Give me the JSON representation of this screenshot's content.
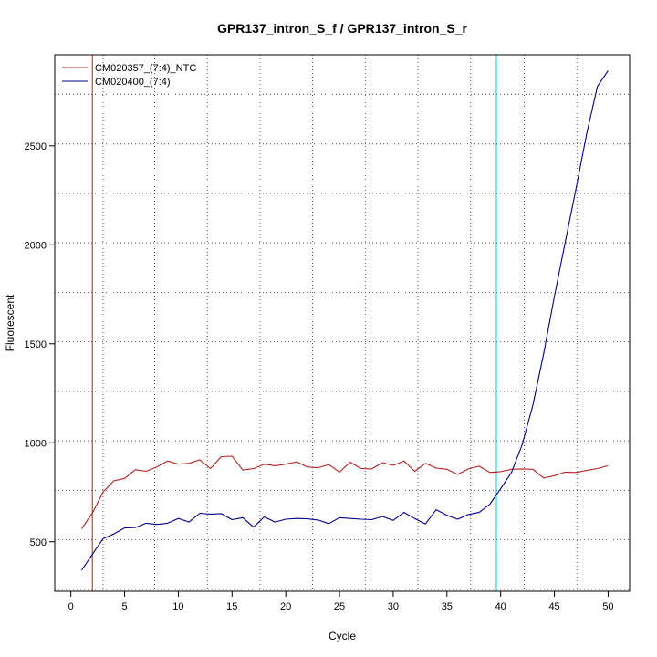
{
  "chart_data": {
    "type": "line",
    "title": "GPR137_intron_S_f / GPR137_intron_S_r",
    "xlabel": "Cycle",
    "ylabel": "Fluorescent",
    "xlim": [
      -1.5,
      52
    ],
    "ylim": [
      250,
      2960
    ],
    "x_ticks": [
      0,
      5,
      10,
      15,
      20,
      25,
      30,
      35,
      40,
      45,
      50
    ],
    "y_ticks": [
      500,
      1000,
      1500,
      2000,
      2500
    ],
    "grid_x": [
      3,
      7.8,
      12.7,
      17.6,
      22.5,
      27.4,
      32.3,
      37.2,
      42.2,
      47.1
    ],
    "grid_y": [
      260,
      510,
      760,
      1010,
      1260,
      1510,
      1760,
      2010,
      2260,
      2510,
      2760
    ],
    "legend_position": "top-left",
    "threshold_lines": [
      {
        "x": 2,
        "color": "#b22222"
      },
      {
        "x": 39.6,
        "color": "#00ced1"
      }
    ],
    "x": [
      1,
      2,
      3,
      4,
      5,
      6,
      7,
      8,
      9,
      10,
      11,
      12,
      13,
      14,
      15,
      16,
      17,
      18,
      19,
      20,
      21,
      22,
      23,
      24,
      25,
      26,
      27,
      28,
      29,
      30,
      31,
      32,
      33,
      34,
      35,
      36,
      37,
      38,
      39,
      40,
      41,
      42,
      43,
      44,
      45,
      46,
      47,
      48,
      49,
      50
    ],
    "series": [
      {
        "name": "CM020357_(7:4)_NTC",
        "color": "#b22222",
        "values": [
          566,
          644,
          752,
          808,
          820,
          864,
          856,
          878,
          908,
          892,
          896,
          914,
          870,
          930,
          932,
          862,
          870,
          892,
          884,
          892,
          904,
          878,
          874,
          890,
          852,
          902,
          870,
          868,
          900,
          886,
          908,
          856,
          896,
          872,
          866,
          840,
          868,
          882,
          850,
          854,
          866,
          868,
          866,
          822,
          834,
          852,
          850,
          860,
          870,
          884
        ]
      },
      {
        "name": "CM020400_(7:4)",
        "color": "#00008b",
        "values": [
          356,
          436,
          516,
          540,
          570,
          572,
          594,
          588,
          594,
          618,
          600,
          644,
          640,
          642,
          612,
          622,
          574,
          626,
          600,
          614,
          618,
          616,
          610,
          592,
          622,
          618,
          614,
          612,
          628,
          608,
          648,
          618,
          590,
          662,
          634,
          614,
          638,
          648,
          690,
          768,
          850,
          990,
          1190,
          1450,
          1740,
          2010,
          2280,
          2560,
          2800,
          2880
        ]
      }
    ]
  }
}
